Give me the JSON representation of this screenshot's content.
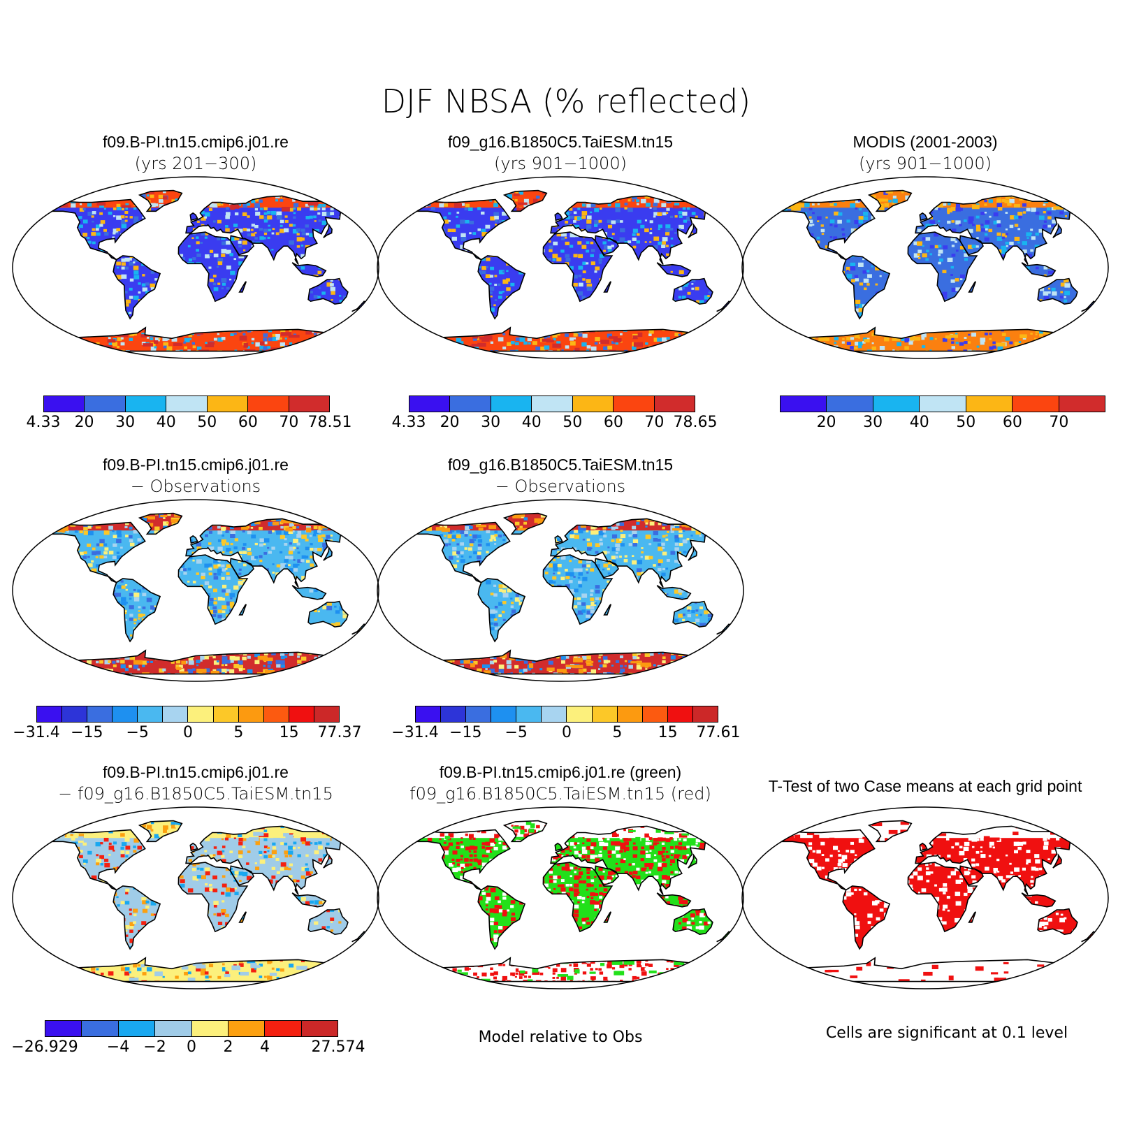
{
  "title": "DJF NBSA (% reflected)",
  "panels": {
    "p1": {
      "line1": "f09.B-PI.tn15.cmip6.j01.re",
      "line2": "(yrs 201−300)",
      "fill": "blue-cool"
    },
    "p2": {
      "line1": "f09_g16.B1850C5.TaiESM.tn15",
      "line2": "(yrs 901−1000)",
      "fill": "blue-cool"
    },
    "p3": {
      "line1": "MODIS (2001-2003)",
      "line2": "(yrs 901−1000)",
      "fill": "blue-mid"
    },
    "p4": {
      "line1": "f09.B-PI.tn15.cmip6.j01.re",
      "line2": "− Observations",
      "fill": "diff-light"
    },
    "p5": {
      "line1": "f09_g16.B1850C5.TaiESM.tn15",
      "line2": "− Observations",
      "fill": "diff-light"
    },
    "p6": {
      "line1": "f09.B-PI.tn15.cmip6.j01.re",
      "line2": "− f09_g16.B1850C5.TaiESM.tn15",
      "fill": "diff-pale"
    },
    "p7": {
      "line1": "f09.B-PI.tn15.cmip6.j01.re (green)",
      "line2": "f09_g16.B1850C5.TaiESM.tn15 (red)",
      "fill": "green-red"
    },
    "p8": {
      "line1": "T-Test of two Case means at each grid point",
      "line2": "",
      "fill": "red-white"
    }
  },
  "colorbars": {
    "cb1": {
      "colors": [
        "#3a10f0",
        "#3a6ee0",
        "#19b4f0",
        "#c0e4f4",
        "#fcb615",
        "#fb4510",
        "#d12c2c"
      ],
      "ticks": [
        "4.33",
        "20",
        "30",
        "40",
        "50",
        "60",
        "70",
        "78.51"
      ]
    },
    "cb2": {
      "colors": [
        "#3a10f0",
        "#3a6ee0",
        "#19b4f0",
        "#c0e4f4",
        "#fcb615",
        "#fb4510",
        "#d12c2c"
      ],
      "ticks": [
        "4.33",
        "20",
        "30",
        "40",
        "50",
        "60",
        "70",
        "78.65"
      ]
    },
    "cb3": {
      "colors": [
        "#3a10f0",
        "#3a6ee0",
        "#19b4f0",
        "#c0e4f4",
        "#fcb615",
        "#fb4510",
        "#d12c2c"
      ],
      "ticks": [
        "20",
        "30",
        "40",
        "50",
        "60",
        "70"
      ]
    },
    "cb4": {
      "colors": [
        "#3a10f0",
        "#2d34d8",
        "#3a6ee0",
        "#1e90f0",
        "#4ab8f0",
        "#a8d4f0",
        "#fcf07c",
        "#fcc828",
        "#fc9a10",
        "#fc5a10",
        "#f01010",
        "#cc2828"
      ],
      "ticks": [
        "−31.4",
        "−15",
        "−5",
        "0",
        "5",
        "15",
        "77.37"
      ]
    },
    "cb5": {
      "colors": [
        "#3a10f0",
        "#2d34d8",
        "#3a6ee0",
        "#1e90f0",
        "#4ab8f0",
        "#a8d4f0",
        "#fcf07c",
        "#fcc828",
        "#fc9a10",
        "#fc5a10",
        "#f01010",
        "#cc2828"
      ],
      "ticks": [
        "−31.4",
        "−15",
        "−5",
        "0",
        "5",
        "15",
        "77.61"
      ]
    },
    "cb6": {
      "colors": [
        "#3a10f0",
        "#3a6ee0",
        "#19a8f0",
        "#a0cce8",
        "#fcf07c",
        "#fca010",
        "#f42010",
        "#cc2828"
      ],
      "ticks": [
        "−26.929",
        "−4",
        "−2",
        "0",
        "2",
        "4",
        "27.574"
      ]
    }
  },
  "notes": {
    "model_rel": "Model relative to Obs",
    "sig": "Cells are significant at 0.1 level"
  }
}
